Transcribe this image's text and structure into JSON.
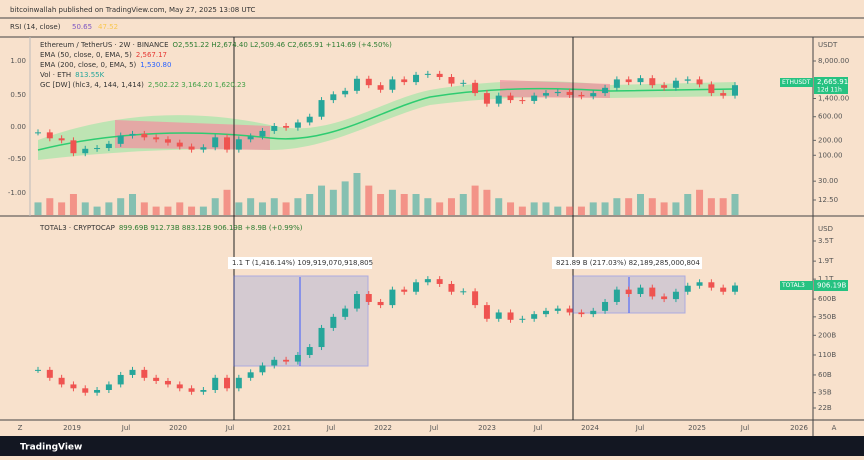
{
  "header": {
    "publisher": "bitcoinwallah published on TradingView.com, May 27, 2025 13:08 UTC"
  },
  "rsi": {
    "label": "RSI (14, close)",
    "values": [
      {
        "text": "50.65",
        "color": "#7e57c2"
      },
      {
        "text": "47.52",
        "color": "#f9c74f"
      }
    ]
  },
  "eth": {
    "legend": [
      {
        "label": "Ethereum / TetherUS · 2W · BINANCE",
        "value": "O2,551.22 H2,674.40 L2,509.46 C2,665.91 +114.69 (+4.50%)",
        "color": "#333333"
      },
      {
        "label": "EMA (50, close, 0, EMA, 5)",
        "value": "2,567.17",
        "color": "#e53935"
      },
      {
        "label": "EMA (200, close, 0, EMA, 5)",
        "value": "1,530.80",
        "color": "#2962ff"
      },
      {
        "label": "Vol · ETH",
        "value": "813.55K",
        "color": "#26a69a"
      },
      {
        "label": "GC [DW] (hlc3, 4, 144, 1,414)",
        "value": "2,502.22 3,164.20 1,620.23",
        "color": "#43a047"
      }
    ],
    "closes": [
      290,
      220,
      200,
      110,
      135,
      140,
      170,
      250,
      270,
      230,
      210,
      180,
      150,
      130,
      145,
      230,
      130,
      210,
      240,
      310,
      390,
      360,
      460,
      600,
      1300,
      1700,
      2000,
      3500,
      2600,
      2100,
      3400,
      3000,
      4200,
      4400,
      3800,
      2800,
      2900,
      1800,
      1100,
      1600,
      1300,
      1250,
      1600,
      1800,
      1900,
      1650,
      1550,
      1800,
      2300,
      3400,
      3000,
      3600,
      2600,
      2300,
      3200,
      3400,
      2700,
      1800,
      1600,
      2600
    ],
    "volumes": [
      3,
      4,
      3,
      5,
      3,
      2,
      3,
      4,
      5,
      3,
      2,
      2,
      3,
      2,
      2,
      4,
      6,
      3,
      4,
      3,
      4,
      3,
      4,
      5,
      7,
      6,
      8,
      10,
      7,
      5,
      6,
      5,
      5,
      4,
      3,
      4,
      5,
      7,
      6,
      4,
      3,
      2,
      3,
      3,
      2,
      2,
      2,
      3,
      3,
      4,
      4,
      5,
      4,
      3,
      3,
      5,
      6,
      4,
      4,
      5
    ],
    "axis_unit": "USDT",
    "axis": [
      {
        "value": 8000,
        "label": "8,000.00"
      },
      {
        "value": 1400,
        "label": "1,400.00"
      },
      {
        "value": 600,
        "label": "600.00"
      },
      {
        "value": 200,
        "label": "200.00"
      },
      {
        "value": 100,
        "label": "100.00"
      },
      {
        "value": 30,
        "label": "30.00"
      },
      {
        "value": 12.5,
        "label": "12.50"
      }
    ],
    "left_axis": [
      "1.00",
      "0.50",
      "0.00",
      "-0.50",
      "-1.00"
    ],
    "price_tag": "ETHUSDT",
    "price": "2,665.91",
    "countdown": "12d 11h"
  },
  "total3": {
    "legend": "TOTAL3 · CRYPTOCAP",
    "legend_values": "899.69B 912.73B 883.12B 906.19B +8.9B (+0.99%)",
    "values": [
      70,
      55,
      45,
      40,
      35,
      38,
      45,
      60,
      70,
      55,
      50,
      45,
      40,
      36,
      38,
      55,
      40,
      55,
      65,
      80,
      95,
      90,
      110,
      140,
      250,
      350,
      450,
      700,
      550,
      500,
      800,
      750,
      1000,
      1100,
      950,
      750,
      760,
      500,
      330,
      400,
      320,
      330,
      380,
      420,
      450,
      400,
      380,
      420,
      550,
      800,
      700,
      850,
      650,
      600,
      750,
      900,
      1000,
      850,
      750,
      906
    ],
    "axis_unit": "USD",
    "axis": [
      {
        "value": 3500,
        "label": "3.5T"
      },
      {
        "value": 1900,
        "label": "1.9T"
      },
      {
        "value": 1100,
        "label": "1.1T"
      },
      {
        "value": 600,
        "label": "600B"
      },
      {
        "value": 350,
        "label": "350B"
      },
      {
        "value": 200,
        "label": "200B"
      },
      {
        "value": 110,
        "label": "110B"
      },
      {
        "value": 60,
        "label": "60B"
      },
      {
        "value": 35,
        "label": "35B"
      },
      {
        "value": 22,
        "label": "22B"
      }
    ],
    "tag": "TOTAL3",
    "tag_value": "906.19B"
  },
  "annotations": [
    {
      "text": "1.1 T (1,416.14%) 109,919,070,918,805"
    },
    {
      "text": "821.89 B (217.03%) 82,189,285,000,804"
    }
  ],
  "time_axis": [
    "Z",
    "2019",
    "Jul",
    "2020",
    "Jul",
    "2021",
    "Jul",
    "2022",
    "Jul",
    "2023",
    "Jul",
    "2024",
    "Jul",
    "2025",
    "Jul",
    "2026",
    "A"
  ],
  "footer": "TradingView"
}
